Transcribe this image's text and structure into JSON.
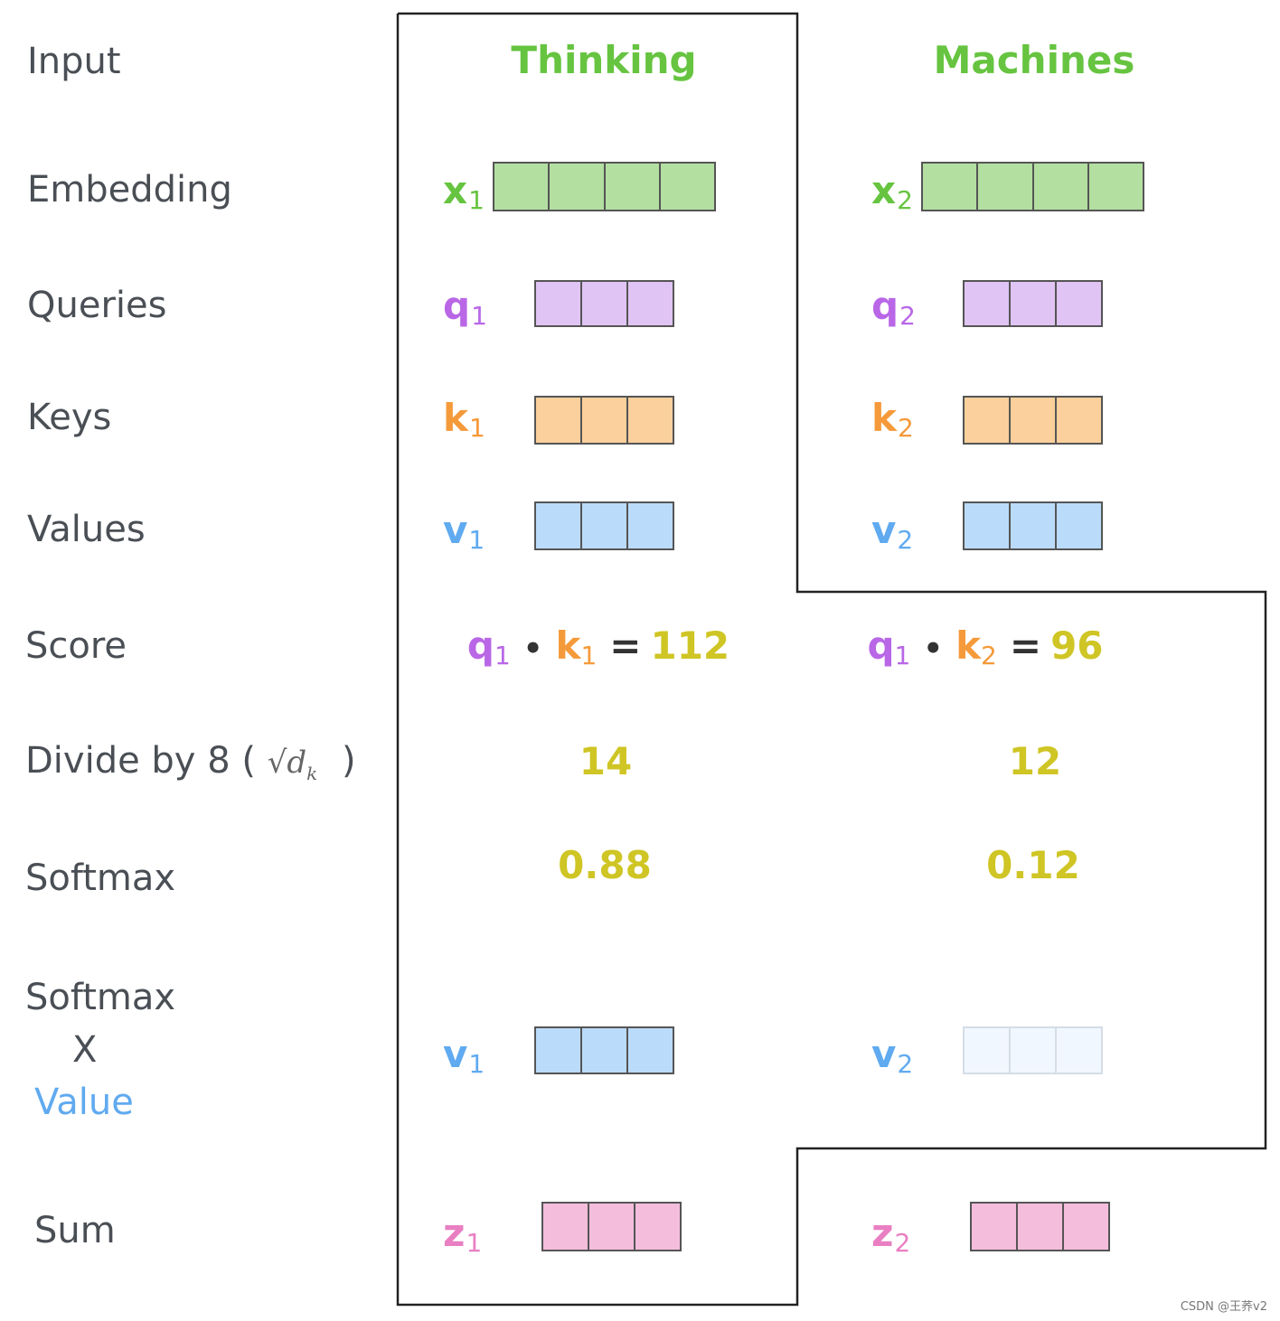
{
  "rows": {
    "input": "Input",
    "embedding": "Embedding",
    "queries": "Queries",
    "keys": "Keys",
    "values": "Values",
    "score": "Score",
    "divide_prefix": "Divide by 8 (",
    "divide_math": "√d",
    "divide_math_sub": "k",
    "divide_suffix": ")",
    "softmax": "Softmax",
    "softmax_value_line1": "Softmax",
    "softmax_value_line2": "X",
    "softmax_value_line3": "Value",
    "sum": "Sum"
  },
  "columns": [
    {
      "title": "Thinking",
      "x_label": "x",
      "x_sub": "1",
      "q_label": "q",
      "q_sub": "1",
      "k_label": "k",
      "k_sub": "1",
      "v_label": "v",
      "v_sub": "1",
      "score": {
        "q": "q",
        "q_sub": "1",
        "dot": "•",
        "k": "k",
        "k_sub": "1",
        "eq": "=",
        "value": "112"
      },
      "divided": "14",
      "softmax": "0.88",
      "wv_label": "v",
      "wv_sub": "1",
      "z_label": "z",
      "z_sub": "1"
    },
    {
      "title": "Machines",
      "x_label": "x",
      "x_sub": "2",
      "q_label": "q",
      "q_sub": "2",
      "k_label": "k",
      "k_sub": "2",
      "v_label": "v",
      "v_sub": "2",
      "score": {
        "q": "q",
        "q_sub": "1",
        "dot": "•",
        "k": "k",
        "k_sub": "2",
        "eq": "=",
        "value": "96"
      },
      "divided": "12",
      "softmax": "0.12",
      "wv_label": "v",
      "wv_sub": "2",
      "z_label": "z",
      "z_sub": "2"
    }
  ],
  "watermark": "CSDN @王荞v2",
  "colors": {
    "embedding": "#b3dfa1",
    "query": "#e0c4f4",
    "key": "#fbd09c",
    "value": "#bbdbfb",
    "value_faded": "#f1f7fe",
    "sum": "#f4bddc",
    "title": "#66c440",
    "number": "#cfc524"
  }
}
